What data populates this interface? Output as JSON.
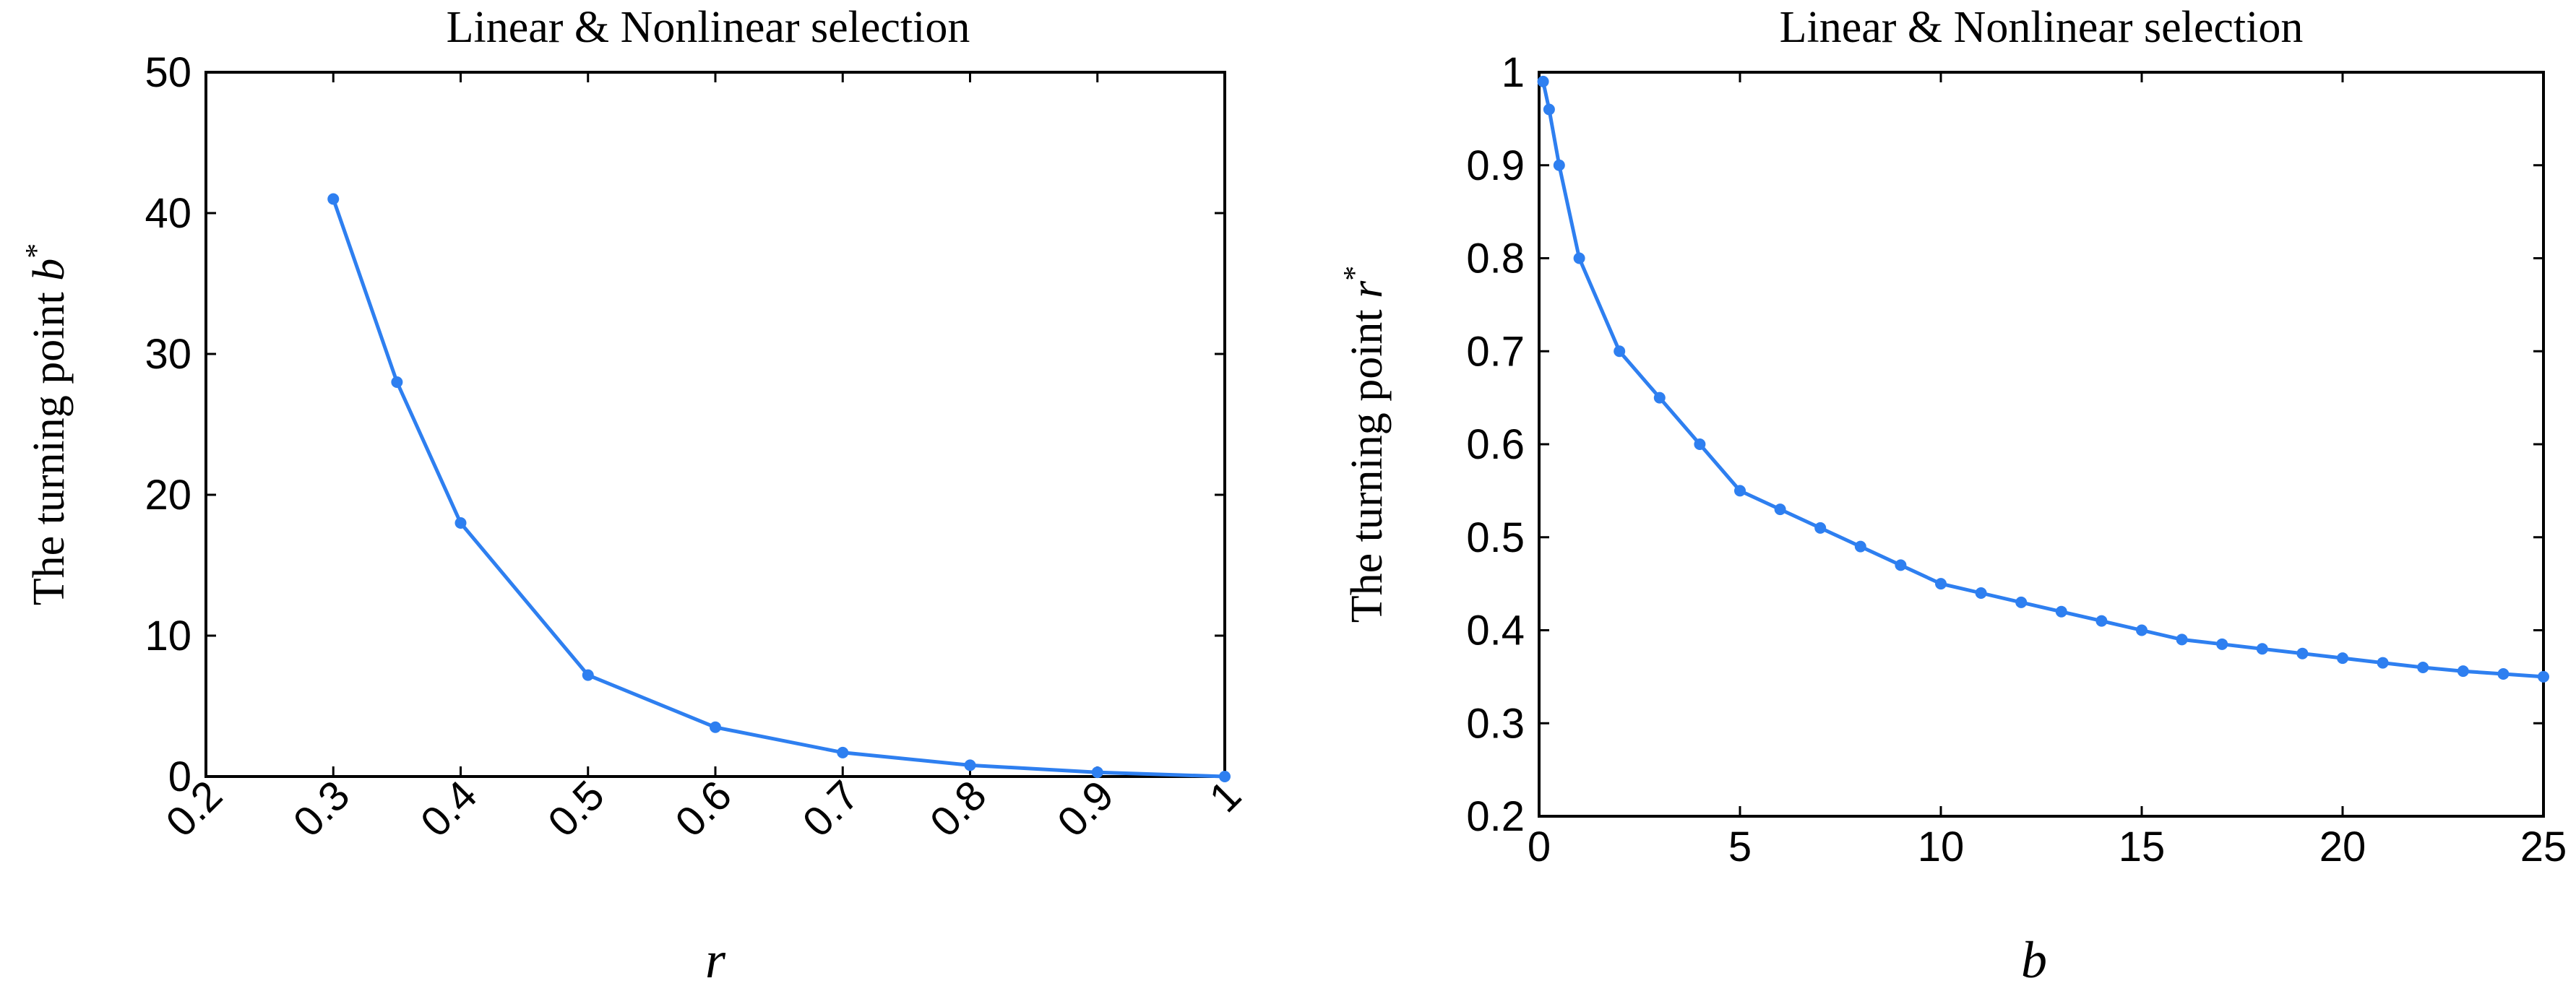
{
  "chart_data": [
    {
      "type": "line",
      "title": "Linear & Nonlinear selection",
      "ylabel_text": "The turning point ",
      "ylabel_var": "b",
      "ylabel_sup": "*",
      "xlabel": "r",
      "xlim": [
        0.2,
        1
      ],
      "ylim": [
        0,
        50
      ],
      "xticks": [
        "0.2",
        "0.3",
        "0.4",
        "0.5",
        "0.6",
        "0.7",
        "0.8",
        "0.9",
        "1"
      ],
      "yticks": [
        "0",
        "10",
        "20",
        "30",
        "40",
        "50"
      ],
      "color": "#2e7ff0",
      "x": [
        0.3,
        0.35,
        0.4,
        0.5,
        0.6,
        0.7,
        0.8,
        0.9,
        1.0
      ],
      "y": [
        41,
        28,
        18,
        7.2,
        3.5,
        1.7,
        0.8,
        0.3,
        0.0
      ]
    },
    {
      "type": "line",
      "title": "Linear & Nonlinear selection",
      "ylabel_text": "The turning point ",
      "ylabel_var": "r",
      "ylabel_sup": "*",
      "xlabel": "b",
      "xlim": [
        0,
        25
      ],
      "ylim": [
        0.2,
        1
      ],
      "xticks": [
        "0",
        "5",
        "10",
        "15",
        "20",
        "25"
      ],
      "yticks": [
        "0.2",
        "0.3",
        "0.4",
        "0.5",
        "0.6",
        "0.7",
        "0.8",
        "0.9",
        "1"
      ],
      "color": "#2e7ff0",
      "x": [
        0.1,
        0.25,
        0.5,
        1,
        2,
        3,
        4,
        5,
        6,
        7,
        8,
        9,
        10,
        11,
        12,
        13,
        14,
        15,
        16,
        17,
        18,
        19,
        20,
        21,
        22,
        23,
        24,
        25
      ],
      "y": [
        0.99,
        0.96,
        0.9,
        0.8,
        0.7,
        0.65,
        0.6,
        0.55,
        0.53,
        0.51,
        0.49,
        0.47,
        0.45,
        0.44,
        0.43,
        0.42,
        0.41,
        0.4,
        0.39,
        0.385,
        0.38,
        0.375,
        0.37,
        0.365,
        0.36,
        0.356,
        0.353,
        0.35
      ]
    }
  ]
}
